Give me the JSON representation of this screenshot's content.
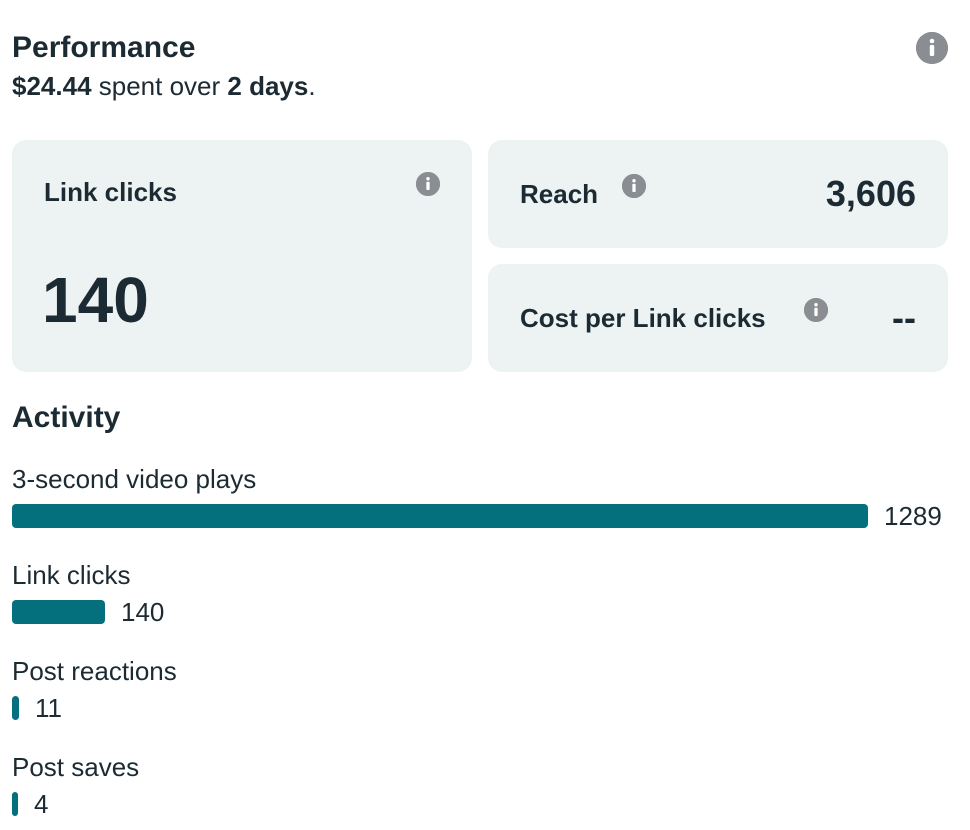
{
  "performance": {
    "title": "Performance",
    "spent_amount": "$24.44",
    "spent_text": " spent over ",
    "duration": "2 days",
    "period": "."
  },
  "cards": {
    "link_clicks": {
      "label": "Link clicks",
      "value": "140"
    },
    "reach": {
      "label": "Reach",
      "value": "3,606"
    },
    "cost_per_link_click": {
      "label": "Cost per Link clicks",
      "value": "--"
    }
  },
  "activity": {
    "title": "Activity",
    "max_value": 1289,
    "items": [
      {
        "label": "3-second video plays",
        "value": 1289
      },
      {
        "label": "Link clicks",
        "value": 140
      },
      {
        "label": "Post reactions",
        "value": 11
      },
      {
        "label": "Post saves",
        "value": 4
      }
    ]
  },
  "colors": {
    "bar": "#05707d",
    "card_background": "#edf2f2",
    "info_icon": "#8a8d91",
    "text": "#1c2b33"
  },
  "icons": {
    "info": "info-icon"
  }
}
